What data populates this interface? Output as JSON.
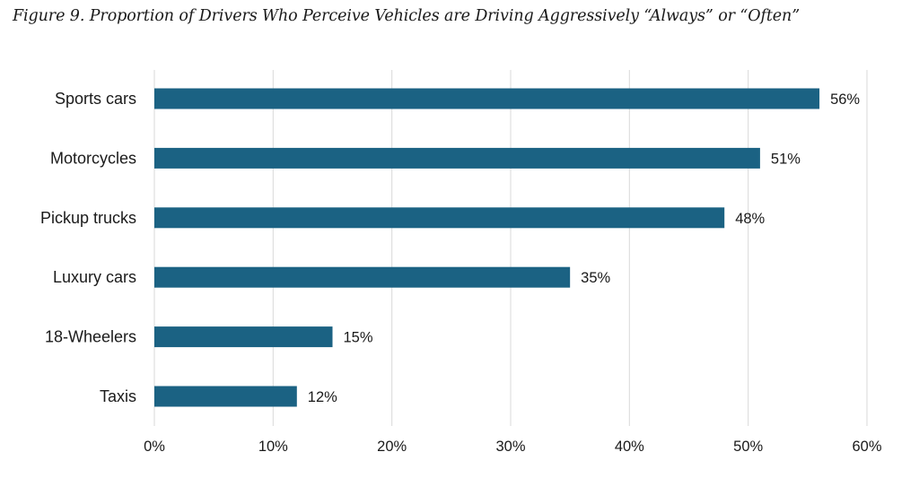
{
  "title": "Figure 9. Proportion of Drivers Who Perceive Vehicles are Driving Aggressively “Always” or “Often”",
  "chart_data": {
    "type": "bar",
    "orientation": "horizontal",
    "title": "Figure 9. Proportion of Drivers Who Perceive Vehicles are Driving Aggressively “Always” or “Often”",
    "xlabel": "",
    "ylabel": "",
    "categories": [
      "Sports cars",
      "Motorcycles",
      "Pickup trucks",
      "Luxury cars",
      "18-Wheelers",
      "Taxis"
    ],
    "values": [
      56,
      51,
      48,
      35,
      15,
      12
    ],
    "value_labels": [
      "56%",
      "51%",
      "48%",
      "35%",
      "15%",
      "12%"
    ],
    "xlim": [
      0,
      60
    ],
    "x_ticks": [
      0,
      10,
      20,
      30,
      40,
      50,
      60
    ],
    "x_tick_labels": [
      "0%",
      "10%",
      "20%",
      "30%",
      "40%",
      "50%",
      "60%"
    ],
    "grid": "vertical",
    "legend": "none",
    "bar_color": "#1b6283",
    "grid_color": "#d9d9d9"
  }
}
